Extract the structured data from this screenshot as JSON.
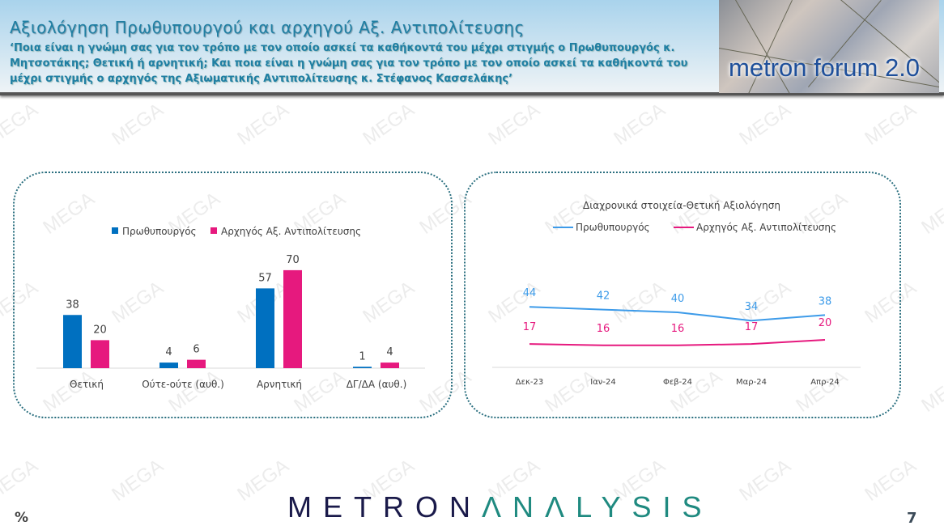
{
  "header": {
    "title": "Αξιολόγηση Πρωθυπουργού και αρχηγού Αξ. Αντιπολίτευσης",
    "subtitle": "‘Ποια είναι η γνώμη σας για τον τρόπο με τον οποίο ασκεί τα καθήκοντά του μέχρι στιγμής ο Πρωθυπουργός κ. Μητσοτάκης; Θετική ή αρνητική; Και ποια είναι η γνώμη σας για τον τρόπο με τον οποίο ασκεί τα καθήκοντά του μέχρι στιγμής ο αρχηγός της Αξιωματικής Αντιπολίτευσης κ. Στέφανος Κασσελάκης’",
    "logo_text": "metron forum 2.0"
  },
  "watermark": "MEGA",
  "colors": {
    "blue_bar": "#0070c0",
    "pink": "#e6197e",
    "blue_line": "#3d9be9"
  },
  "chart_data": [
    {
      "type": "bar",
      "categories": [
        "Θετική",
        "Ούτε-ούτε (αυθ.)",
        "Αρνητική",
        "ΔΓ/ΔΑ (αυθ.)"
      ],
      "series": [
        {
          "name": "Πρωθυπουργός",
          "values": [
            38,
            4,
            57,
            1
          ]
        },
        {
          "name": "Αρχηγός Αξ. Αντιπολίτευσης",
          "values": [
            20,
            6,
            70,
            4
          ]
        }
      ],
      "title": "",
      "xlabel": "",
      "ylabel": "",
      "ylim": [
        0,
        75
      ],
      "legend": "top"
    },
    {
      "type": "line",
      "title": "Διαχρονικά στοιχεία-Θετική Αξιολόγηση",
      "categories": [
        "Δεκ-23",
        "Ιαν-24",
        "Φεβ-24",
        "Μαρ-24",
        "Απρ-24"
      ],
      "series": [
        {
          "name": "Πρωθυπουργός",
          "values": [
            44,
            42,
            40,
            34,
            38
          ]
        },
        {
          "name": "Αρχηγός Αξ. Αντιπολίτευσης",
          "values": [
            17,
            16,
            16,
            17,
            20
          ]
        }
      ],
      "xlabel": "",
      "ylabel": "",
      "ylim": [
        0,
        90
      ],
      "legend": "top"
    }
  ],
  "footer": {
    "logo_dark": "METRON",
    "logo_teal_1": "ΛN",
    "logo_teal_2": "Λ",
    "logo_teal_3": "LYSIS",
    "unit": "%",
    "page": "7"
  }
}
